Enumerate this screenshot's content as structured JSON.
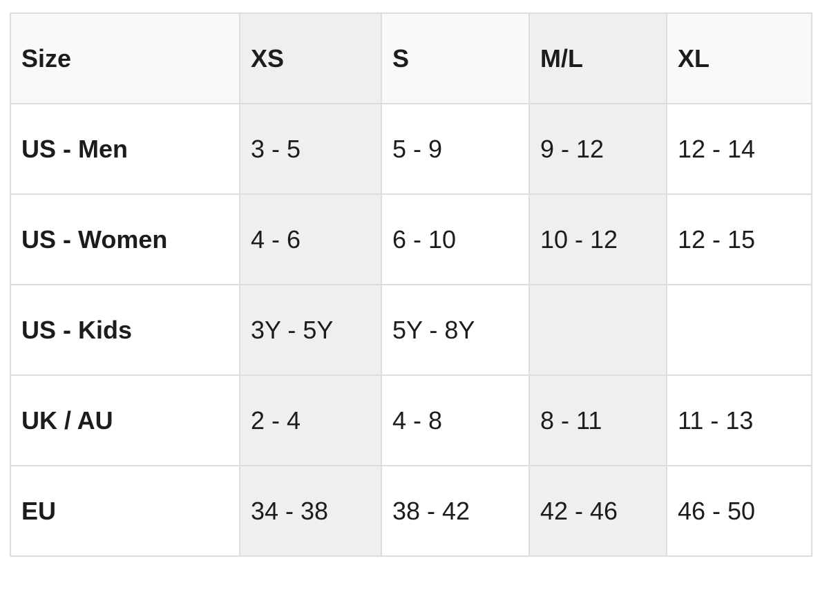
{
  "table": {
    "headers": [
      "Size",
      "XS",
      "S",
      "M/L",
      "XL"
    ],
    "rows": [
      {
        "label": "US - Men",
        "values": [
          "3 - 5",
          "5 - 9",
          "9 - 12",
          "12 - 14"
        ]
      },
      {
        "label": "US - Women",
        "values": [
          "4 - 6",
          "6 - 10",
          "10 - 12",
          "12 - 15"
        ]
      },
      {
        "label": "US - Kids",
        "values": [
          "3Y - 5Y",
          "5Y - 8Y",
          "",
          ""
        ]
      },
      {
        "label": "UK / AU",
        "values": [
          "2 - 4",
          "4 - 8",
          "8 - 11",
          "11 - 13"
        ]
      },
      {
        "label": "EU",
        "values": [
          "34 - 38",
          "38 - 42",
          "42 - 46",
          "46 - 50"
        ]
      }
    ]
  },
  "colors": {
    "border": "#dddddd",
    "header_bg": "#f9f9f9",
    "shaded_column_bg": "#efefef",
    "text": "#1c1c1c"
  }
}
